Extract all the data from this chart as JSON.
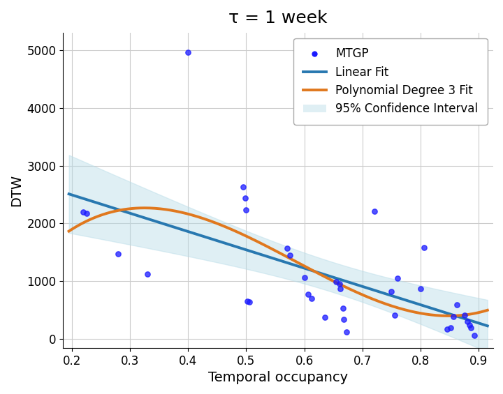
{
  "title": "τ = 1 week",
  "xlabel": "Temporal occupancy",
  "ylabel": "DTW",
  "xlim": [
    0.185,
    0.925
  ],
  "ylim": [
    -150,
    5300
  ],
  "xticks": [
    0.2,
    0.3,
    0.4,
    0.5,
    0.6,
    0.7,
    0.8,
    0.9
  ],
  "yticks": [
    0,
    1000,
    2000,
    3000,
    4000,
    5000
  ],
  "scatter_x": [
    0.22,
    0.225,
    0.28,
    0.33,
    0.4,
    0.495,
    0.498,
    0.5,
    0.502,
    0.506,
    0.57,
    0.575,
    0.6,
    0.607,
    0.612,
    0.635,
    0.655,
    0.66,
    0.662,
    0.666,
    0.668,
    0.672,
    0.72,
    0.75,
    0.756,
    0.76,
    0.8,
    0.806,
    0.845,
    0.852,
    0.856,
    0.862,
    0.875,
    0.88,
    0.884,
    0.887,
    0.892
  ],
  "scatter_y": [
    2200,
    2170,
    1480,
    1120,
    4960,
    2630,
    2440,
    2230,
    650,
    640,
    1570,
    1450,
    1060,
    780,
    700,
    380,
    990,
    960,
    870,
    530,
    340,
    130,
    2210,
    830,
    420,
    1050,
    870,
    1580,
    170,
    200,
    390,
    600,
    420,
    310,
    250,
    200,
    60
  ],
  "scatter_color": "#1a1aff",
  "scatter_alpha": 0.75,
  "scatter_size": 28,
  "linear_color": "#2878b0",
  "linear_lw": 2.8,
  "poly_color": "#e0781e",
  "poly_lw": 2.8,
  "ci_color": "#b8dce8",
  "ci_alpha": 0.45,
  "bg_color": "#ffffff",
  "grid_color": "#cccccc",
  "title_fontsize": 18,
  "label_fontsize": 14,
  "tick_fontsize": 12,
  "legend_fontsize": 12
}
